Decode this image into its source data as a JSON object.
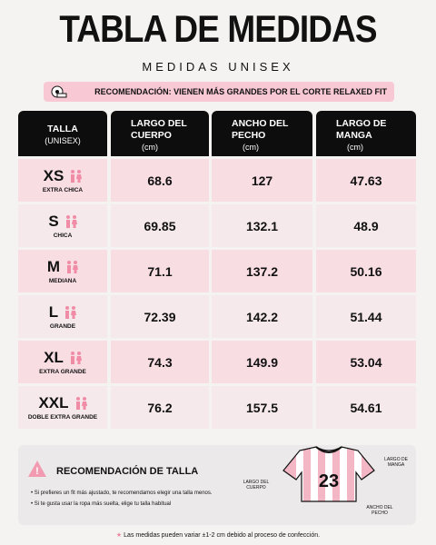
{
  "header": {
    "title": "TABLA DE MEDIDAS",
    "subtitle": "MEDIDAS UNISEX"
  },
  "banner": "RECOMENDACIÓN: VIENEN MÁS GRANDES POR EL CORTE RELAXED FIT",
  "table": {
    "columns": [
      {
        "label": "TALLA",
        "unit": "(UNISEX)"
      },
      {
        "label": "LARGO DEL CUERPO",
        "unit": "(cm)"
      },
      {
        "label": "ANCHO DEL PECHO",
        "unit": "(cm)"
      },
      {
        "label": "LARGO DE MANGA",
        "unit": "(cm)"
      }
    ],
    "rows": [
      {
        "size": "XS",
        "name": "EXTRA CHICA",
        "values": [
          68.6,
          127,
          47.63
        ]
      },
      {
        "size": "S",
        "name": "CHICA",
        "values": [
          69.85,
          132.1,
          48.9
        ]
      },
      {
        "size": "M",
        "name": "MEDIANA",
        "values": [
          71.1,
          137.2,
          50.16
        ]
      },
      {
        "size": "L",
        "name": "GRANDE",
        "values": [
          72.39,
          142.2,
          51.44
        ]
      },
      {
        "size": "XL",
        "name": "EXTRA GRANDE",
        "values": [
          74.3,
          149.9,
          53.04
        ]
      },
      {
        "size": "XXL",
        "name": "DOBLE EXTRA GRANDE",
        "values": [
          76.2,
          157.5,
          54.61
        ]
      }
    ]
  },
  "recommendation": {
    "title": "RECOMENDACIÓN DE TALLA",
    "bullets": [
      "Si prefieres un fit más ajustado, te recomendamos elegir una talla menos.",
      "Si te gusta usar la ropa más suelta, elige tu talla habitual"
    ]
  },
  "diagram": {
    "number": "23",
    "body_length": "LARGO DEL CUERPO",
    "sleeve_length": "LARGO DE MANGA",
    "chest_width": "ANCHO DEL PECHO"
  },
  "footnote": "Las medidas pueden variar ±1-2 cm debido al proceso de confección."
}
